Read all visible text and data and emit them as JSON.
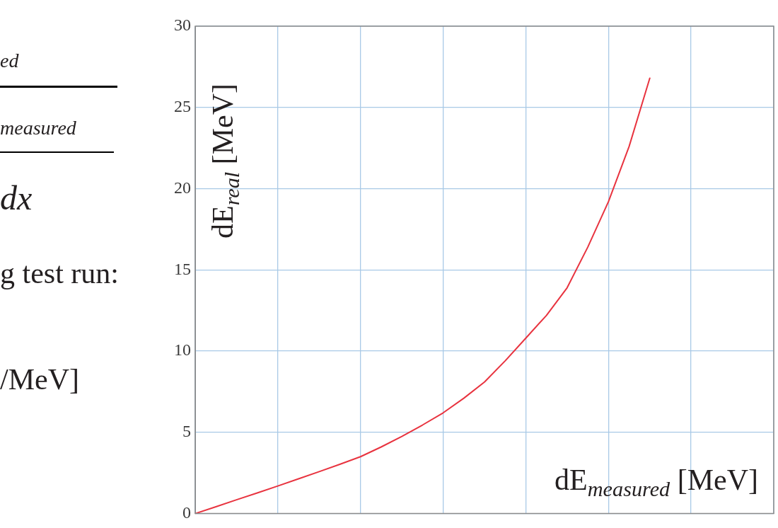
{
  "chart_data": {
    "type": "line",
    "ylabel": "dE$_{real}$ [MeV]",
    "xlabel": "dE$_{measured}$ [MeV]",
    "annotations": [
      "ed",
      "measured",
      "dx",
      "g test run:",
      "/MeV]"
    ],
    "categories": [
      null,
      null,
      null,
      null,
      null,
      null,
      null,
      null,
      null,
      null,
      null,
      null,
      null,
      null,
      null,
      null,
      null,
      null,
      null,
      null,
      null,
      null,
      null,
      null,
      null,
      null,
      null,
      null,
      null
    ],
    "series": [
      {
        "color": "#e8333f",
        "values": [
          0,
          0.42,
          0.85,
          1.27,
          1.7,
          2.14,
          2.58,
          3.03,
          3.5,
          4.1,
          4.75,
          5.45,
          6.2,
          7.1,
          8.1,
          9.4,
          10.8,
          12.2,
          13.9,
          16.4,
          19.2,
          22.6,
          26.8,
          null,
          null,
          null,
          null,
          null,
          null
        ]
      }
    ],
    "ylim": [
      0,
      30
    ],
    "yticks": [
      0,
      5,
      10,
      15,
      20,
      25,
      30
    ],
    "grid": true,
    "tick_labels": "y",
    "marker": "none",
    "line_style": "solid",
    "legend": false
  }
}
